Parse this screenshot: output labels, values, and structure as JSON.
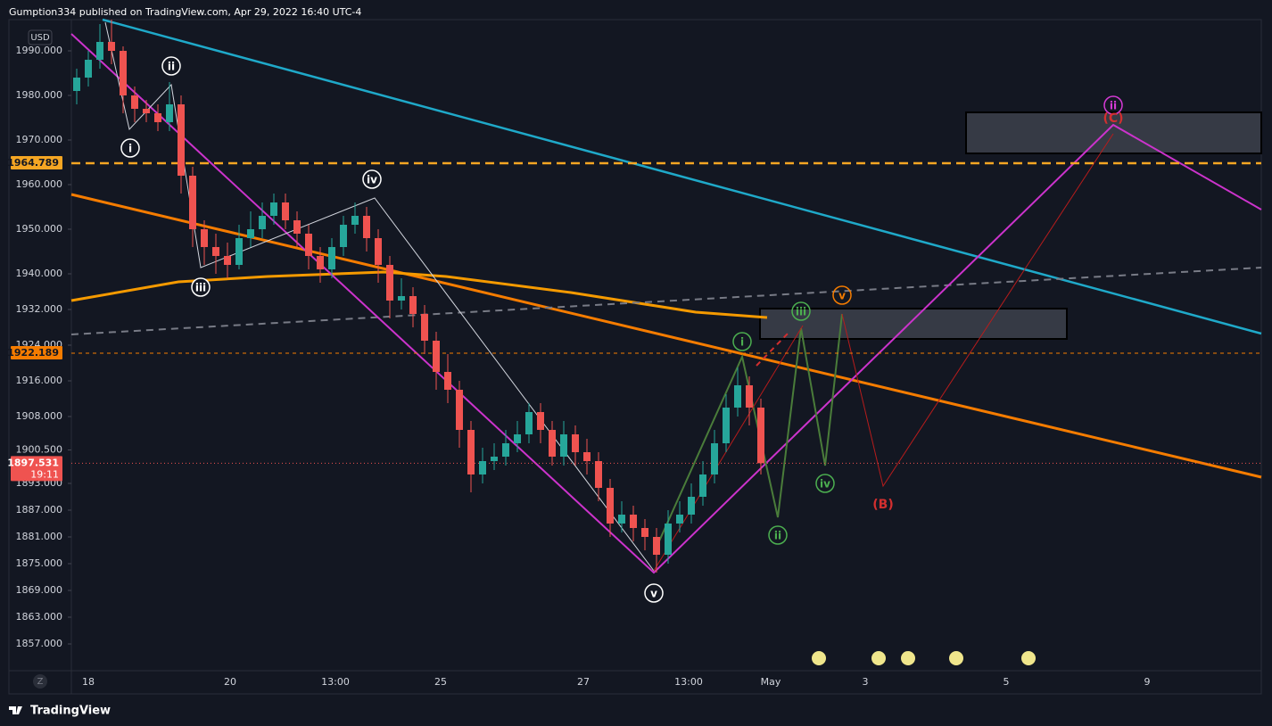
{
  "header": {
    "title": "Gumption334 published on TradingView.com, Apr 29, 2022 16:40 UTC-4"
  },
  "footer": {
    "brand": "TradingView"
  },
  "chart_data": {
    "type": "candlestick",
    "currency": "USD",
    "scale_button": "Z",
    "up_color": "#26a69a",
    "down_color": "#ef5350",
    "ylim": [
      1857,
      1990
    ],
    "yticks": [
      {
        "value": 1990,
        "label": "1990.000"
      },
      {
        "value": 1980,
        "label": "1980.000"
      },
      {
        "value": 1970,
        "label": "1970.000"
      },
      {
        "value": 1960,
        "label": "1960.000"
      },
      {
        "value": 1950,
        "label": "1950.000"
      },
      {
        "value": 1940,
        "label": "1940.000"
      },
      {
        "value": 1932,
        "label": "1932.000"
      },
      {
        "value": 1924,
        "label": "1924.000"
      },
      {
        "value": 1916,
        "label": "1916.000"
      },
      {
        "value": 1908,
        "label": "1908.000"
      },
      {
        "value": 1900.5,
        "label": "1900.500"
      },
      {
        "value": 1893,
        "label": "1893.000"
      },
      {
        "value": 1887,
        "label": "1887.000"
      },
      {
        "value": 1881,
        "label": "1881.000"
      },
      {
        "value": 1875,
        "label": "1875.000"
      },
      {
        "value": 1869,
        "label": "1869.000"
      },
      {
        "value": 1863,
        "label": "1863.000"
      },
      {
        "value": 1857,
        "label": "1857.000"
      }
    ],
    "x_labels": [
      "18",
      "20",
      "13:00",
      "25",
      "27",
      "13:00",
      "May",
      "3",
      "5",
      "9"
    ],
    "price_lines": [
      {
        "value": 1964.789,
        "color": "#f5a623",
        "style": "dashed"
      },
      {
        "value": 1922.189,
        "color": "#f57c00",
        "style": "dashed"
      },
      {
        "value": 1897.531,
        "color": "#ef5350",
        "style": "dotted",
        "countdown": "19:11"
      }
    ],
    "candles": [
      [
        1981,
        1986,
        1978,
        1984
      ],
      [
        1984,
        1990,
        1982,
        1988
      ],
      [
        1988,
        1996,
        1986,
        1992
      ],
      [
        1992,
        1997,
        1987,
        1990
      ],
      [
        1990,
        1991,
        1976,
        1980
      ],
      [
        1980,
        1982,
        1974,
        1977
      ],
      [
        1977,
        1979,
        1974,
        1976
      ],
      [
        1976,
        1978,
        1972,
        1974
      ],
      [
        1974,
        1983,
        1972,
        1978
      ],
      [
        1978,
        1980,
        1958,
        1962
      ],
      [
        1962,
        1964,
        1946,
        1950
      ],
      [
        1950,
        1952,
        1942,
        1946
      ],
      [
        1946,
        1949,
        1940,
        1944
      ],
      [
        1944,
        1947,
        1939,
        1942
      ],
      [
        1942,
        1951,
        1941,
        1948
      ],
      [
        1948,
        1954,
        1946,
        1950
      ],
      [
        1950,
        1956,
        1948,
        1953
      ],
      [
        1953,
        1958,
        1951,
        1956
      ],
      [
        1956,
        1958,
        1950,
        1952
      ],
      [
        1952,
        1954,
        1946,
        1949
      ],
      [
        1949,
        1951,
        1941,
        1944
      ],
      [
        1944,
        1946,
        1938,
        1941
      ],
      [
        1941,
        1948,
        1939,
        1946
      ],
      [
        1946,
        1953,
        1944,
        1951
      ],
      [
        1951,
        1956,
        1949,
        1953
      ],
      [
        1953,
        1955,
        1945,
        1948
      ],
      [
        1948,
        1950,
        1938,
        1942
      ],
      [
        1942,
        1944,
        1930,
        1934
      ],
      [
        1934,
        1939,
        1932,
        1935
      ],
      [
        1935,
        1937,
        1928,
        1931
      ],
      [
        1931,
        1933,
        1922,
        1925
      ],
      [
        1925,
        1927,
        1914,
        1918
      ],
      [
        1918,
        1922,
        1911,
        1914
      ],
      [
        1914,
        1916,
        1901,
        1905
      ],
      [
        1905,
        1907,
        1891,
        1895
      ],
      [
        1895,
        1901,
        1893,
        1898
      ],
      [
        1898,
        1902,
        1896,
        1899
      ],
      [
        1899,
        1905,
        1897,
        1902
      ],
      [
        1902,
        1907,
        1900,
        1904
      ],
      [
        1904,
        1911,
        1902,
        1909
      ],
      [
        1909,
        1911,
        1902,
        1905
      ],
      [
        1905,
        1907,
        1897,
        1899
      ],
      [
        1899,
        1907,
        1897,
        1904
      ],
      [
        1904,
        1906,
        1897,
        1900
      ],
      [
        1900,
        1903,
        1895,
        1898
      ],
      [
        1898,
        1900,
        1889,
        1892
      ],
      [
        1892,
        1894,
        1881,
        1884
      ],
      [
        1884,
        1889,
        1882,
        1886
      ],
      [
        1886,
        1888,
        1880,
        1883
      ],
      [
        1883,
        1885,
        1878,
        1881
      ],
      [
        1881,
        1883,
        1873,
        1877
      ],
      [
        1877,
        1887,
        1875,
        1884
      ],
      [
        1884,
        1889,
        1882,
        1886
      ],
      [
        1886,
        1893,
        1884,
        1890
      ],
      [
        1890,
        1898,
        1888,
        1895
      ],
      [
        1895,
        1905,
        1893,
        1902
      ],
      [
        1902,
        1913,
        1900,
        1910
      ],
      [
        1910,
        1919,
        1908,
        1915
      ],
      [
        1915,
        1917,
        1906,
        1910
      ],
      [
        1910,
        1912,
        1895,
        1897.531
      ]
    ],
    "annotations": [
      {
        "text": "i",
        "color": "#ffffff"
      },
      {
        "text": "ii",
        "color": "#ffffff"
      },
      {
        "text": "iii",
        "color": "#ffffff"
      },
      {
        "text": "iv",
        "color": "#ffffff"
      },
      {
        "text": "v",
        "color": "#ffffff"
      },
      {
        "text": "i",
        "color": "#4caf50"
      },
      {
        "text": "ii",
        "color": "#4caf50"
      },
      {
        "text": "iii",
        "color": "#4caf50"
      },
      {
        "text": "iv",
        "color": "#4caf50"
      },
      {
        "text": "v",
        "color": "#f57c00"
      },
      {
        "text": "(B)",
        "color": "#d32f2f"
      },
      {
        "text": "ii",
        "color": "#d63ad6"
      },
      {
        "text": "(C)",
        "color": "#d32f2f"
      }
    ]
  }
}
